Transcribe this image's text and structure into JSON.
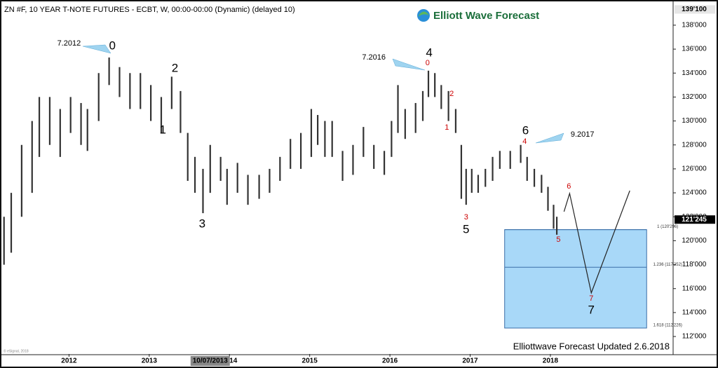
{
  "chart_data": {
    "type": "range-bar",
    "title": "ZN #F, 10 YEAR T-NOTE FUTURES - ECBT, W, 00:00-00:00 (Dynamic) (delayed 10)",
    "logo": "Elliott Wave Forecast",
    "footer": "Elliottwave Forecast Updated 2.6.2018",
    "copyright": "© eSignal, 2018",
    "color": "#333333",
    "x": [
      2011.19,
      2011.28,
      2011.41,
      2011.54,
      2011.63,
      2011.76,
      2011.89,
      2012.02,
      2012.15,
      2012.23,
      2012.37,
      2012.5,
      2012.63,
      2012.76,
      2012.89,
      2013.02,
      2013.15,
      2013.28,
      2013.39,
      2013.48,
      2013.57,
      2013.67,
      2013.76,
      2013.89,
      2013.97,
      2014.1,
      2014.23,
      2014.37,
      2014.5,
      2014.63,
      2014.76,
      2014.89,
      2015.02,
      2015.1,
      2015.19,
      2015.28,
      2015.41,
      2015.54,
      2015.67,
      2015.8,
      2015.93,
      2016.02,
      2016.1,
      2016.19,
      2016.32,
      2016.41,
      2016.48,
      2016.56,
      2016.64,
      2016.73,
      2016.82,
      2016.89,
      2016.95,
      2017.02,
      2017.1,
      2017.19,
      2017.28,
      2017.37,
      2017.5,
      2017.63,
      2017.71,
      2017.8,
      2017.89,
      2017.97,
      2018.04,
      2018.08
    ],
    "high": [
      122,
      124,
      128,
      130,
      132,
      132,
      131,
      132,
      131.5,
      131,
      134,
      135.3,
      134.5,
      134,
      134,
      133,
      132,
      133.7,
      132.5,
      129,
      127,
      126,
      128,
      127,
      126,
      126.5,
      125.5,
      125.5,
      126,
      127,
      128.5,
      129,
      131,
      130.5,
      130,
      130,
      127.5,
      128,
      129.5,
      128,
      127.5,
      130,
      133,
      131,
      131.5,
      132.5,
      134.2,
      134,
      133,
      132.5,
      131,
      128,
      126,
      126,
      125.5,
      126,
      127,
      127.5,
      127.5,
      128,
      127,
      126,
      125.5,
      124.5,
      123,
      122
    ],
    "low": [
      118,
      119,
      122,
      124,
      127,
      128,
      127,
      129,
      128,
      127.5,
      130,
      133,
      132,
      131,
      131,
      130,
      129,
      131,
      129,
      125,
      124,
      122.3,
      124,
      125,
      123,
      124,
      123,
      123.5,
      124,
      125,
      126,
      126,
      127,
      128,
      127,
      127,
      125,
      125.5,
      127,
      126,
      125.5,
      127,
      129,
      128.5,
      129,
      130,
      132,
      132,
      131,
      130,
      129,
      123.5,
      123,
      124,
      124,
      124.5,
      125,
      126,
      126,
      126.5,
      125,
      124.5,
      124,
      122.5,
      121,
      120.5
    ],
    "xlim": [
      2011.14,
      2019.53
    ],
    "ylim": [
      110.54,
      139.81
    ],
    "xticks": [
      2012,
      2013,
      2014,
      2015,
      2016,
      2017,
      2018
    ],
    "yticks": [
      {
        "value": 112,
        "label": "112'000"
      },
      {
        "value": 114,
        "label": "114'000"
      },
      {
        "value": 116,
        "label": "116'000"
      },
      {
        "value": 118,
        "label": "118'000"
      },
      {
        "value": 120,
        "label": "120'000"
      },
      {
        "value": 122,
        "label": "122'000"
      },
      {
        "value": 124,
        "label": "124'000"
      },
      {
        "value": 126,
        "label": "126'000"
      },
      {
        "value": 128,
        "label": "128'000"
      },
      {
        "value": 130,
        "label": "130'000"
      },
      {
        "value": 132,
        "label": "132'000"
      },
      {
        "value": 134,
        "label": "134'000"
      },
      {
        "value": 136,
        "label": "136'000"
      },
      {
        "value": 138,
        "label": "138'000"
      }
    ],
    "price_labels": [
      {
        "value": 139.3125,
        "label": "139'100"
      },
      {
        "value": 121.766,
        "label": "121'245"
      }
    ],
    "crosshair": {
      "value": 2013.76,
      "label": "10/07/2013"
    },
    "fib_box": {
      "x": [
        2017.43,
        2019.2
      ],
      "color": "#a8d8f8",
      "levels": [
        {
          "value": 120.925,
          "label": "1 (120'296)"
        },
        {
          "value": 117.7875,
          "label": "1.236 (117'252)"
        },
        {
          "value": 112.706,
          "label": "1.618 (112'226)"
        }
      ]
    },
    "projection": {
      "x": [
        2018.17,
        2018.24,
        2018.51,
        2018.99
      ],
      "y": [
        122.43,
        123.95,
        115.64,
        124.18
      ]
    },
    "annotations": [
      {
        "text": "0",
        "x": 2012.54,
        "y": 136.24,
        "color": "#000000"
      },
      {
        "text": "7.2012",
        "x": 2012.0,
        "y": 136.48,
        "color": "#000000"
      },
      {
        "text": "2",
        "x": 2013.32,
        "y": 134.37,
        "color": "#000000"
      },
      {
        "text": "1",
        "x": 2013.17,
        "y": 129.2,
        "color": "#000000"
      },
      {
        "text": "3",
        "x": 2013.66,
        "y": 121.37,
        "color": "#000000"
      },
      {
        "text": "4",
        "x": 2016.49,
        "y": 135.66,
        "color": "#000000"
      },
      {
        "text": "7.2016",
        "x": 2015.8,
        "y": 135.3,
        "color": "#000000"
      },
      {
        "text": "0",
        "x": 2016.47,
        "y": 134.84,
        "color": "#cc0000"
      },
      {
        "text": "2",
        "x": 2016.77,
        "y": 132.26,
        "color": "#cc0000"
      },
      {
        "text": "1",
        "x": 2016.71,
        "y": 129.45,
        "color": "#cc0000"
      },
      {
        "text": "3",
        "x": 2016.95,
        "y": 121.96,
        "color": "#cc0000"
      },
      {
        "text": "5",
        "x": 2016.95,
        "y": 120.9,
        "color": "#000000"
      },
      {
        "text": "6",
        "x": 2017.69,
        "y": 129.16,
        "color": "#000000"
      },
      {
        "text": "4",
        "x": 2017.68,
        "y": 128.28,
        "color": "#cc0000"
      },
      {
        "text": "9.2017",
        "x": 2018.4,
        "y": 128.87,
        "color": "#000000"
      },
      {
        "text": "6",
        "x": 2018.23,
        "y": 124.53,
        "color": "#cc0000"
      },
      {
        "text": "5",
        "x": 2018.1,
        "y": 120.08,
        "color": "#cc0000"
      },
      {
        "text": "7",
        "x": 2018.51,
        "y": 115.17,
        "color": "#cc0000"
      },
      {
        "text": "7",
        "x": 2018.51,
        "y": 114.17,
        "color": "#000000"
      }
    ]
  }
}
